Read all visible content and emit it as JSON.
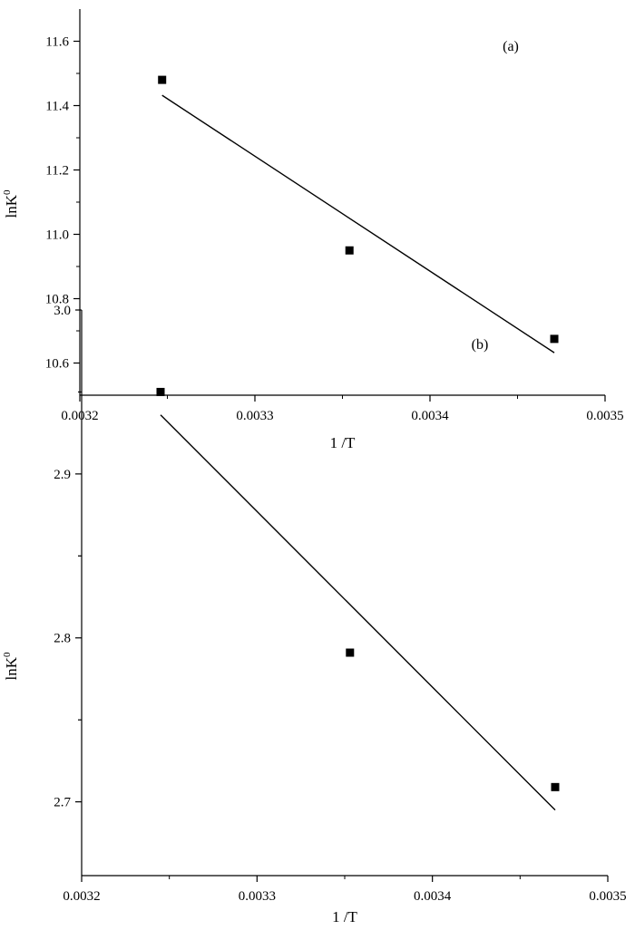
{
  "chart_data": [
    {
      "type": "scatter",
      "panel_label": "(a)",
      "xlabel": "1 /T",
      "ylabel": "lnK",
      "ylabel_superscript": "0",
      "xlim": [
        0.0032,
        0.0035
      ],
      "ylim": [
        10.5,
        11.7
      ],
      "xticks": [
        0.0032,
        0.0033,
        0.0034,
        0.0035
      ],
      "xtick_labels": [
        "0.0032",
        "0.0033",
        "0.0034",
        "0.0035"
      ],
      "yticks": [
        10.6,
        10.8,
        11.0,
        11.2,
        11.4,
        11.6
      ],
      "ytick_labels": [
        "10.6",
        "10.8",
        "11.0",
        "11.2",
        "11.4",
        "11.6"
      ],
      "points": [
        {
          "x": 0.003247,
          "y": 11.48
        },
        {
          "x": 0.003354,
          "y": 10.95
        },
        {
          "x": 0.003471,
          "y": 10.675
        }
      ],
      "fit_line": {
        "x": [
          0.003247,
          0.003471
        ],
        "y": [
          11.432,
          10.632
        ]
      },
      "grid": false,
      "legend": "none",
      "marker": "filled-square",
      "color": "#000000"
    },
    {
      "type": "scatter",
      "panel_label": "(b)",
      "xlabel": "1 /T",
      "ylabel": "lnK",
      "ylabel_superscript": "0",
      "xlim": [
        0.0032,
        0.0035
      ],
      "ylim": [
        2.655,
        3.0
      ],
      "xticks": [
        0.0032,
        0.0033,
        0.0034,
        0.0035
      ],
      "xtick_labels": [
        "0.0032",
        "0.0033",
        "0.0034",
        "0.0035"
      ],
      "yticks": [
        2.7,
        2.8,
        2.9,
        3.0
      ],
      "ytick_labels": [
        "2.7",
        "2.8",
        "2.9",
        "3.0"
      ],
      "points": [
        {
          "x": 0.003245,
          "y": 2.95
        },
        {
          "x": 0.003353,
          "y": 2.791
        },
        {
          "x": 0.00347,
          "y": 2.709
        }
      ],
      "fit_line": {
        "x": [
          0.003245,
          0.00347
        ],
        "y": [
          2.936,
          2.695
        ]
      },
      "grid": false,
      "legend": "none",
      "marker": "filled-square",
      "color": "#000000"
    }
  ]
}
